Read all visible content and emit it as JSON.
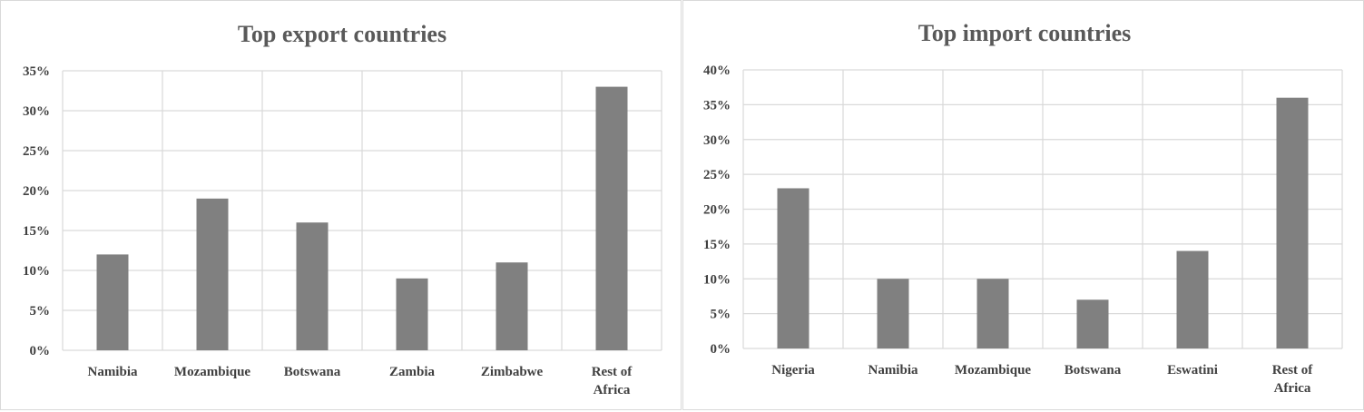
{
  "chart_data": [
    {
      "type": "bar",
      "title": "Top export countries",
      "xlabel": "",
      "ylabel": "",
      "categories": [
        "Namibia",
        "Mozambique",
        "Botswana",
        "Zambia",
        "Zimbabwe",
        "Rest of Africa"
      ],
      "category_lines": [
        [
          "Namibia"
        ],
        [
          "Mozambique"
        ],
        [
          "Botswana"
        ],
        [
          "Zambia"
        ],
        [
          "Zimbabwe"
        ],
        [
          "Rest of",
          "Africa"
        ]
      ],
      "values": [
        12,
        19,
        16,
        9,
        11,
        33
      ],
      "ylim": [
        0,
        35
      ],
      "ytick_step": 5,
      "ytick_format": "percent",
      "grid": true,
      "bar_color": "#808080",
      "grid_color": "#d9d9d9"
    },
    {
      "type": "bar",
      "title": "Top import countries",
      "xlabel": "",
      "ylabel": "",
      "categories": [
        "Nigeria",
        "Namibia",
        "Mozambique",
        "Botswana",
        "Eswatini",
        "Rest of Africa"
      ],
      "category_lines": [
        [
          "Nigeria"
        ],
        [
          "Namibia"
        ],
        [
          "Mozambique"
        ],
        [
          "Botswana"
        ],
        [
          "Eswatini"
        ],
        [
          "Rest of",
          "Africa"
        ]
      ],
      "values": [
        23,
        10,
        10,
        7,
        14,
        36
      ],
      "ylim": [
        0,
        40
      ],
      "ytick_step": 5,
      "ytick_format": "percent",
      "grid": true,
      "bar_color": "#808080",
      "grid_color": "#d9d9d9"
    }
  ]
}
